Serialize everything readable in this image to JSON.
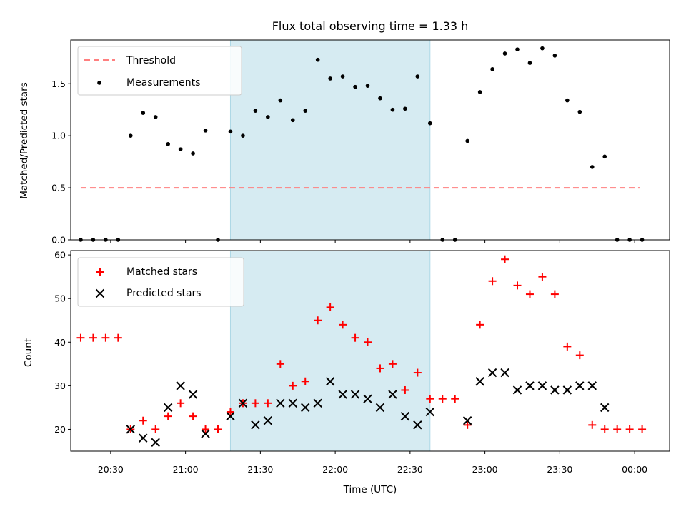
{
  "chart_data": [
    {
      "type": "scatter",
      "title": "Flux total observing time = 1.33 h",
      "xlabel": "",
      "ylabel": "Matched/Predicted stars",
      "xlim": [
        "20:14",
        "00:14"
      ],
      "ylim": [
        0,
        1.92
      ],
      "yticks": [
        "0.0",
        "0.5",
        "1.0",
        "1.5"
      ],
      "highlight_span": [
        "21:18",
        "22:38"
      ],
      "legend_position": "upper-left",
      "legend": [
        "Threshold",
        "Measurements"
      ],
      "threshold": {
        "name": "Threshold",
        "y": 0.5,
        "x_start": "20:18",
        "x_end": "00:02"
      },
      "series": [
        {
          "name": "Measurements",
          "x": [
            "20:18",
            "20:23",
            "20:28",
            "20:33",
            "20:38",
            "20:43",
            "20:48",
            "20:53",
            "20:58",
            "21:03",
            "21:08",
            "21:13",
            "21:18",
            "21:23",
            "21:28",
            "21:33",
            "21:38",
            "21:43",
            "21:48",
            "21:53",
            "21:58",
            "22:03",
            "22:08",
            "22:13",
            "22:18",
            "22:23",
            "22:28",
            "22:33",
            "22:38",
            "22:43",
            "22:48",
            "22:53",
            "22:58",
            "23:03",
            "23:08",
            "23:13",
            "23:18",
            "23:23",
            "23:28",
            "23:33",
            "23:38",
            "23:43",
            "23:48",
            "23:53",
            "23:58",
            "00:03"
          ],
          "y": [
            0,
            0,
            0,
            0,
            1.0,
            1.22,
            1.18,
            0.92,
            0.87,
            0.83,
            1.05,
            0,
            1.04,
            1.0,
            1.24,
            1.18,
            1.34,
            1.15,
            1.24,
            1.73,
            1.55,
            1.57,
            1.47,
            1.48,
            1.36,
            1.25,
            1.26,
            1.57,
            1.12,
            0,
            0,
            0.95,
            1.42,
            1.64,
            1.79,
            1.83,
            1.7,
            1.84,
            1.77,
            1.34,
            1.23,
            0.7,
            0.8,
            0,
            0,
            0
          ]
        }
      ]
    },
    {
      "type": "scatter",
      "title": "",
      "xlabel": "Time (UTC)",
      "ylabel": "Count",
      "xlim": [
        "20:14",
        "00:14"
      ],
      "ylim": [
        15,
        61
      ],
      "yticks": [
        "20",
        "30",
        "40",
        "50",
        "60"
      ],
      "xticks": [
        "20:30",
        "21:00",
        "21:30",
        "22:00",
        "22:30",
        "23:00",
        "23:30",
        "00:00"
      ],
      "highlight_span": [
        "21:18",
        "22:38"
      ],
      "legend_position": "upper-left",
      "legend": [
        "Matched stars",
        "Predicted stars"
      ],
      "series": [
        {
          "name": "Matched stars",
          "x": [
            "20:18",
            "20:23",
            "20:28",
            "20:33",
            "20:38",
            "20:43",
            "20:48",
            "20:53",
            "20:58",
            "21:03",
            "21:08",
            "21:13",
            "21:18",
            "21:23",
            "21:28",
            "21:33",
            "21:38",
            "21:43",
            "21:48",
            "21:53",
            "21:58",
            "22:03",
            "22:08",
            "22:13",
            "22:18",
            "22:23",
            "22:28",
            "22:33",
            "22:38",
            "22:43",
            "22:48",
            "22:53",
            "22:58",
            "23:03",
            "23:08",
            "23:13",
            "23:18",
            "23:23",
            "23:28",
            "23:33",
            "23:38",
            "23:43",
            "23:48",
            "23:53",
            "23:58",
            "00:03"
          ],
          "y": [
            41,
            41,
            41,
            41,
            20,
            22,
            20,
            23,
            26,
            23,
            20,
            20,
            24,
            26,
            26,
            26,
            35,
            30,
            31,
            45,
            48,
            44,
            41,
            40,
            34,
            35,
            29,
            33,
            27,
            27,
            27,
            21,
            44,
            54,
            59,
            53,
            51,
            55,
            51,
            39,
            37,
            21,
            20,
            20,
            20,
            20
          ]
        },
        {
          "name": "Predicted stars",
          "x": [
            "20:38",
            "20:43",
            "20:48",
            "20:53",
            "20:58",
            "21:03",
            "21:08",
            "21:18",
            "21:23",
            "21:28",
            "21:33",
            "21:38",
            "21:43",
            "21:48",
            "21:53",
            "21:58",
            "22:03",
            "22:08",
            "22:13",
            "22:18",
            "22:23",
            "22:28",
            "22:33",
            "22:38",
            "22:53",
            "22:58",
            "23:03",
            "23:08",
            "23:13",
            "23:18",
            "23:23",
            "23:28",
            "23:33",
            "23:38",
            "23:43",
            "23:48"
          ],
          "y": [
            20,
            18,
            17,
            25,
            30,
            28,
            19,
            23,
            26,
            21,
            22,
            26,
            26,
            25,
            26,
            31,
            28,
            28,
            27,
            25,
            28,
            23,
            21,
            24,
            22,
            31,
            33,
            33,
            29,
            30,
            30,
            29,
            29,
            30,
            30,
            25
          ]
        }
      ]
    }
  ],
  "colors": {
    "span": "#add8e6",
    "threshold": "#ff7f7f",
    "measurements": "#000000",
    "matched": "#ff0000",
    "predicted": "#000000"
  }
}
